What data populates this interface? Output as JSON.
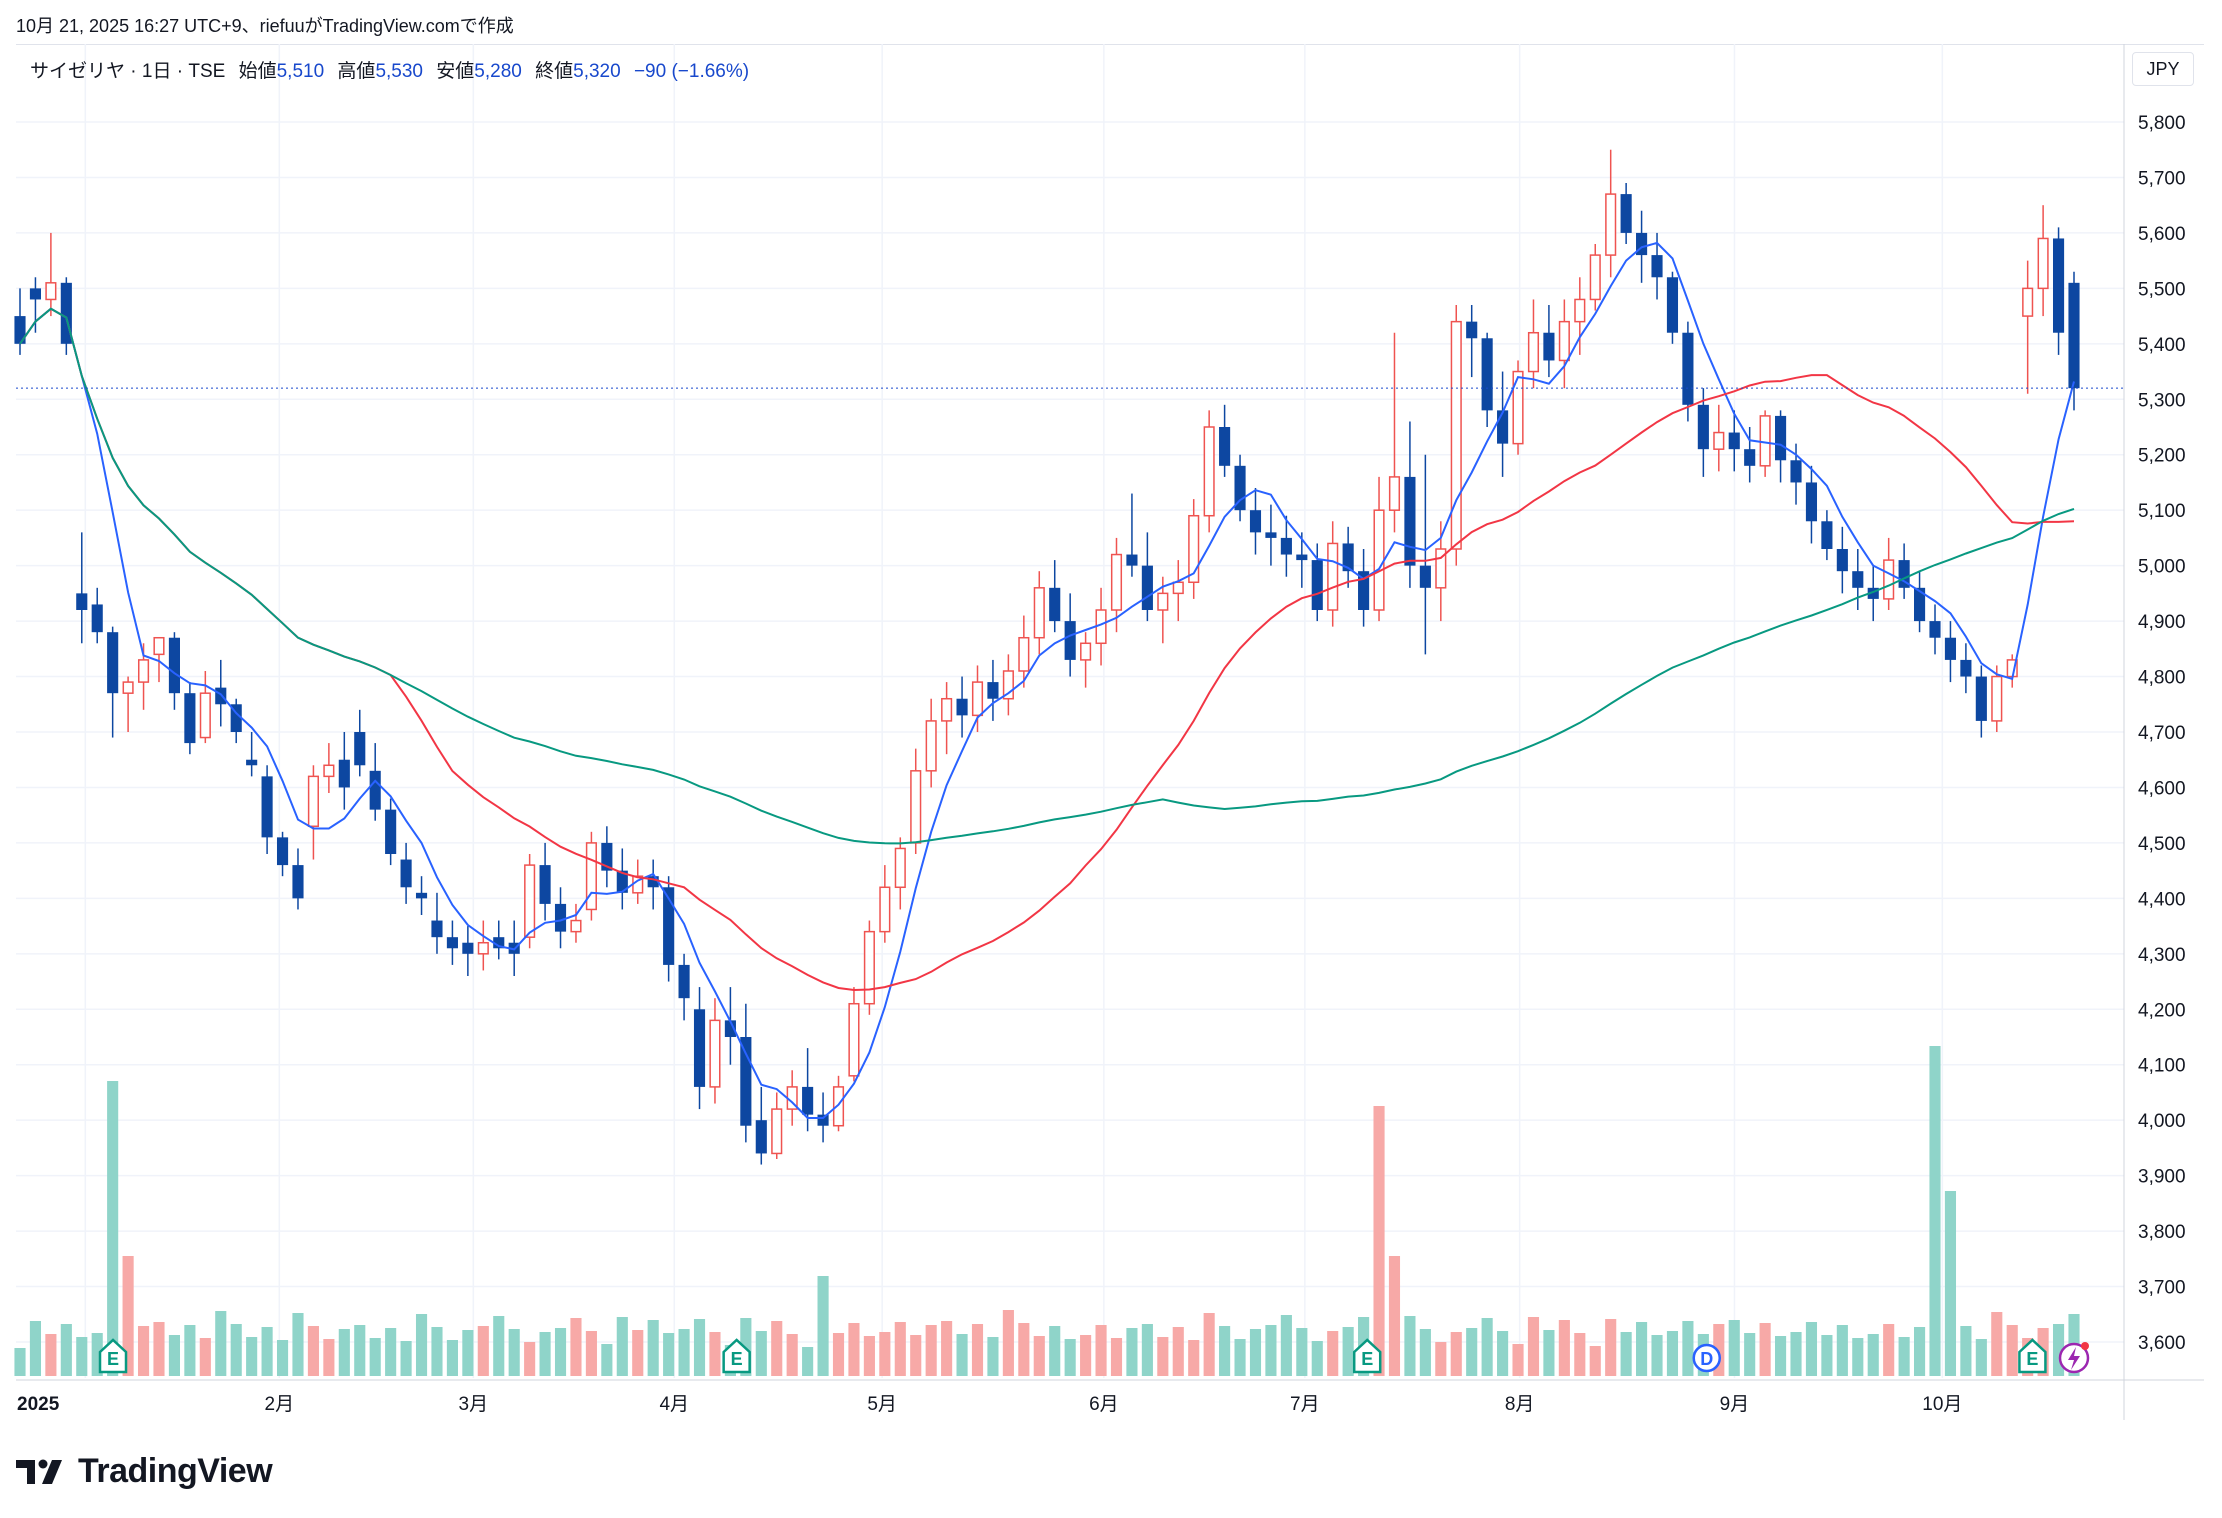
{
  "header": {
    "timestamp": "10月 21, 2025 16:27 UTC+9、riefuuがTradingView.comで作成"
  },
  "legend": {
    "symbol": "サイゼリヤ · 1日 · TSE",
    "open_label": "始値",
    "open": "5,510",
    "high_label": "高値",
    "high": "5,530",
    "low_label": "安値",
    "low": "5,280",
    "close_label": "終値",
    "close": "5,320",
    "change": "−90 (−1.66%)"
  },
  "currency": "JPY",
  "logo_text": "TradingView",
  "colors": {
    "up": "#ef5350",
    "down": "#0d47a1",
    "vol_up": "#26a69a",
    "vol_down": "#ef5350",
    "ma_short": "#2962ff",
    "ma_mid": "#f23645",
    "ma_long": "#089981",
    "grid": "#f0f3fa"
  },
  "chart_data": {
    "type": "candlestick",
    "symbol": "サイゼリヤ",
    "interval": "1日",
    "exchange": "TSE",
    "y_axis": {
      "ticks": [
        3600,
        3700,
        3800,
        3900,
        4000,
        4100,
        4200,
        4300,
        4400,
        4500,
        4600,
        4700,
        4800,
        4900,
        5000,
        5100,
        5200,
        5300,
        5400,
        5500,
        5600,
        5700,
        5800
      ],
      "tick_labels": [
        "3,600",
        "3,700",
        "3,800",
        "3,900",
        "4,000",
        "4,100",
        "4,200",
        "4,300",
        "4,400",
        "4,500",
        "4,600",
        "4,700",
        "4,800",
        "4,900",
        "5,000",
        "5,100",
        "5,200",
        "5,300",
        "5,400",
        "5,500",
        "5,600",
        "5,700",
        "5,800"
      ],
      "range": [
        3540,
        5880
      ]
    },
    "x_axis": {
      "labels": [
        {
          "text": "2025",
          "date": "2025-01-06",
          "bold": true
        },
        {
          "text": "2月",
          "date": "2025-02-03"
        },
        {
          "text": "3月",
          "date": "2025-03-03"
        },
        {
          "text": "4月",
          "date": "2025-04-01"
        },
        {
          "text": "5月",
          "date": "2025-05-01"
        },
        {
          "text": "6月",
          "date": "2025-06-02"
        },
        {
          "text": "7月",
          "date": "2025-07-01"
        },
        {
          "text": "8月",
          "date": "2025-08-01"
        },
        {
          "text": "9月",
          "date": "2025-09-01"
        },
        {
          "text": "10月",
          "date": "2025-10-01"
        }
      ]
    },
    "last_close": 5320,
    "candles_approx": [
      [
        5450,
        5500,
        5380,
        5400
      ],
      [
        5500,
        5520,
        5420,
        5480
      ],
      [
        5480,
        5600,
        5450,
        5510
      ],
      [
        5510,
        5520,
        5380,
        5400
      ],
      [
        4950,
        5060,
        4860,
        4920
      ],
      [
        4930,
        4960,
        4860,
        4880
      ],
      [
        4880,
        4890,
        4690,
        4770
      ],
      [
        4770,
        4800,
        4700,
        4790
      ],
      [
        4790,
        4860,
        4740,
        4830
      ],
      [
        4840,
        4870,
        4790,
        4870
      ],
      [
        4870,
        4880,
        4740,
        4770
      ],
      [
        4770,
        4790,
        4660,
        4680
      ],
      [
        4690,
        4810,
        4680,
        4770
      ],
      [
        4780,
        4830,
        4710,
        4750
      ],
      [
        4750,
        4760,
        4680,
        4700
      ],
      [
        4650,
        4700,
        4620,
        4640
      ],
      [
        4620,
        4640,
        4480,
        4510
      ],
      [
        4510,
        4520,
        4440,
        4460
      ],
      [
        4460,
        4490,
        4380,
        4400
      ],
      [
        4530,
        4640,
        4470,
        4620
      ],
      [
        4620,
        4680,
        4590,
        4640
      ],
      [
        4650,
        4700,
        4560,
        4600
      ],
      [
        4700,
        4740,
        4620,
        4640
      ],
      [
        4630,
        4680,
        4540,
        4560
      ],
      [
        4560,
        4580,
        4460,
        4480
      ],
      [
        4470,
        4500,
        4390,
        4420
      ],
      [
        4410,
        4440,
        4370,
        4400
      ],
      [
        4360,
        4410,
        4300,
        4330
      ],
      [
        4330,
        4360,
        4280,
        4310
      ],
      [
        4320,
        4350,
        4260,
        4300
      ],
      [
        4300,
        4360,
        4270,
        4320
      ],
      [
        4330,
        4360,
        4290,
        4310
      ],
      [
        4320,
        4360,
        4260,
        4300
      ],
      [
        4330,
        4480,
        4310,
        4460
      ],
      [
        4460,
        4500,
        4360,
        4390
      ],
      [
        4390,
        4420,
        4310,
        4340
      ],
      [
        4340,
        4390,
        4320,
        4360
      ],
      [
        4380,
        4520,
        4360,
        4500
      ],
      [
        4500,
        4530,
        4420,
        4450
      ],
      [
        4450,
        4490,
        4380,
        4410
      ],
      [
        4410,
        4470,
        4390,
        4440
      ],
      [
        4440,
        4470,
        4380,
        4420
      ],
      [
        4420,
        4440,
        4250,
        4280
      ],
      [
        4280,
        4300,
        4180,
        4220
      ],
      [
        4200,
        4240,
        4020,
        4060
      ],
      [
        4060,
        4220,
        4030,
        4180
      ],
      [
        4180,
        4240,
        4100,
        4150
      ],
      [
        4150,
        4210,
        3960,
        3990
      ],
      [
        4000,
        4060,
        3920,
        3940
      ],
      [
        3940,
        4050,
        3930,
        4020
      ],
      [
        4020,
        4090,
        3990,
        4060
      ],
      [
        4060,
        4130,
        3980,
        4010
      ],
      [
        4010,
        4050,
        3960,
        3990
      ],
      [
        3990,
        4080,
        3980,
        4060
      ],
      [
        4080,
        4240,
        4070,
        4210
      ],
      [
        4210,
        4360,
        4190,
        4340
      ],
      [
        4340,
        4460,
        4320,
        4420
      ],
      [
        4420,
        4510,
        4380,
        4490
      ],
      [
        4500,
        4670,
        4480,
        4630
      ],
      [
        4630,
        4760,
        4600,
        4720
      ],
      [
        4720,
        4790,
        4660,
        4760
      ],
      [
        4760,
        4800,
        4690,
        4730
      ],
      [
        4730,
        4820,
        4700,
        4790
      ],
      [
        4790,
        4830,
        4720,
        4760
      ],
      [
        4760,
        4840,
        4730,
        4810
      ],
      [
        4810,
        4910,
        4780,
        4870
      ],
      [
        4870,
        4990,
        4840,
        4960
      ],
      [
        4960,
        5010,
        4880,
        4900
      ],
      [
        4900,
        4950,
        4800,
        4830
      ],
      [
        4830,
        4880,
        4780,
        4860
      ],
      [
        4860,
        4960,
        4820,
        4920
      ],
      [
        4920,
        5050,
        4880,
        5020
      ],
      [
        5020,
        5130,
        4980,
        5000
      ],
      [
        5000,
        5060,
        4900,
        4920
      ],
      [
        4920,
        4980,
        4860,
        4950
      ],
      [
        4950,
        5010,
        4900,
        4970
      ],
      [
        4970,
        5120,
        4940,
        5090
      ],
      [
        5090,
        5280,
        5060,
        5250
      ],
      [
        5250,
        5290,
        5160,
        5180
      ],
      [
        5180,
        5200,
        5080,
        5100
      ],
      [
        5100,
        5140,
        5020,
        5060
      ],
      [
        5060,
        5110,
        5000,
        5050
      ],
      [
        5050,
        5090,
        4980,
        5020
      ],
      [
        5020,
        5060,
        4960,
        5010
      ],
      [
        5010,
        5040,
        4900,
        4920
      ],
      [
        4920,
        5080,
        4890,
        5040
      ],
      [
        5040,
        5070,
        4960,
        4990
      ],
      [
        4990,
        5030,
        4890,
        4920
      ],
      [
        4920,
        5160,
        4900,
        5100
      ],
      [
        5100,
        5420,
        5060,
        5160
      ],
      [
        5160,
        5260,
        4960,
        5000
      ],
      [
        5000,
        5200,
        4840,
        4960
      ],
      [
        4960,
        5080,
        4900,
        5030
      ],
      [
        5030,
        5470,
        5000,
        5440
      ],
      [
        5440,
        5470,
        5340,
        5410
      ],
      [
        5410,
        5420,
        5250,
        5280
      ],
      [
        5280,
        5350,
        5160,
        5220
      ],
      [
        5220,
        5370,
        5200,
        5350
      ],
      [
        5350,
        5480,
        5320,
        5420
      ],
      [
        5420,
        5470,
        5340,
        5370
      ],
      [
        5370,
        5480,
        5320,
        5440
      ],
      [
        5440,
        5520,
        5380,
        5480
      ],
      [
        5480,
        5580,
        5460,
        5560
      ],
      [
        5560,
        5750,
        5520,
        5670
      ],
      [
        5670,
        5690,
        5580,
        5600
      ],
      [
        5600,
        5640,
        5510,
        5560
      ],
      [
        5560,
        5600,
        5480,
        5520
      ],
      [
        5520,
        5530,
        5400,
        5420
      ],
      [
        5420,
        5440,
        5260,
        5290
      ],
      [
        5290,
        5320,
        5160,
        5210
      ],
      [
        5210,
        5290,
        5170,
        5240
      ],
      [
        5240,
        5280,
        5170,
        5210
      ],
      [
        5210,
        5250,
        5150,
        5180
      ],
      [
        5180,
        5280,
        5160,
        5270
      ],
      [
        5270,
        5280,
        5150,
        5190
      ],
      [
        5190,
        5220,
        5110,
        5150
      ],
      [
        5150,
        5180,
        5040,
        5080
      ],
      [
        5080,
        5100,
        5010,
        5030
      ],
      [
        5030,
        5070,
        4950,
        4990
      ],
      [
        4990,
        5030,
        4920,
        4960
      ],
      [
        4960,
        5000,
        4900,
        4940
      ],
      [
        4940,
        5050,
        4920,
        5010
      ],
      [
        5010,
        5040,
        4940,
        4960
      ],
      [
        4960,
        4990,
        4880,
        4900
      ],
      [
        4900,
        4930,
        4840,
        4870
      ],
      [
        4870,
        4900,
        4790,
        4830
      ],
      [
        4830,
        4860,
        4770,
        4800
      ],
      [
        4800,
        4820,
        4690,
        4720
      ],
      [
        4720,
        4820,
        4700,
        4800
      ],
      [
        4800,
        4840,
        4780,
        4830
      ],
      [
        5450,
        5550,
        5310,
        5500
      ],
      [
        5500,
        5650,
        5450,
        5590
      ],
      [
        5590,
        5610,
        5380,
        5420
      ],
      [
        5510,
        5530,
        5280,
        5320
      ]
    ],
    "moving_averages": [
      {
        "name": "short",
        "color": "#2962ff"
      },
      {
        "name": "mid",
        "color": "#f23645"
      },
      {
        "name": "long",
        "color": "#089981"
      }
    ],
    "event_markers": [
      {
        "label": "E",
        "date": "2025-01-10"
      },
      {
        "label": "E",
        "date": "2025-04-10"
      },
      {
        "label": "E",
        "date": "2025-07-10"
      },
      {
        "label": "D",
        "date": "2025-08-28"
      },
      {
        "label": "E",
        "date": "2025-10-14"
      }
    ],
    "grid": true
  }
}
